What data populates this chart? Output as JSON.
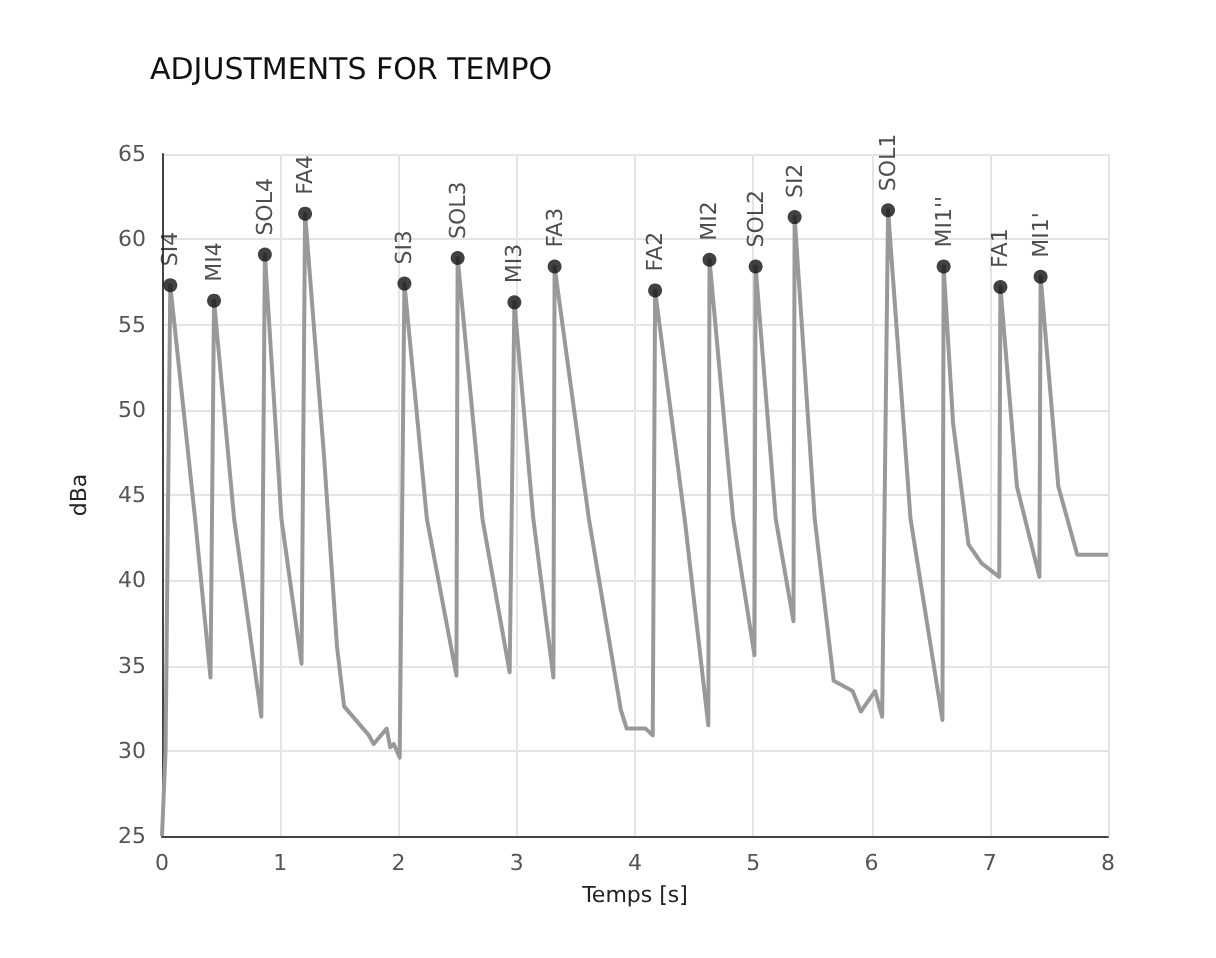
{
  "chart_data": {
    "type": "line",
    "title": "ADJUSTMENTS FOR TEMPO",
    "xlabel": "Temps [s]",
    "ylabel": "dBa",
    "xlim": [
      0,
      8
    ],
    "xticks": [
      0,
      1,
      2,
      3,
      4,
      5,
      6,
      7,
      8
    ],
    "ylim": [
      25,
      65
    ],
    "yticks": [
      25,
      30,
      35,
      40,
      45,
      50,
      55,
      60,
      65
    ],
    "grid": true,
    "series": [
      {
        "color": "#999999",
        "marker": "none",
        "x": [
          0,
          0.03,
          0.07,
          0.28,
          0.41,
          0.44,
          0.61,
          0.84,
          0.87,
          1.01,
          1.18,
          1.21,
          1.37,
          1.48,
          1.54,
          1.75,
          1.79,
          1.9,
          1.93,
          1.96,
          2.01,
          2.05,
          2.24,
          2.49,
          2.5,
          2.71,
          2.94,
          2.98,
          3.14,
          3.31,
          3.32,
          3.61,
          3.88,
          3.93,
          4.09,
          4.15,
          4.17,
          4.42,
          4.62,
          4.63,
          4.83,
          5.01,
          5.02,
          5.19,
          5.34,
          5.35,
          5.52,
          5.68,
          5.84,
          5.91,
          6.03,
          6.09,
          6.14,
          6.33,
          6.6,
          6.61,
          6.69,
          6.82,
          6.93,
          7.08,
          7.09,
          7.23,
          7.42,
          7.43,
          7.58,
          7.74,
          8.0
        ],
        "values": [
          25,
          30,
          57.3,
          43.6,
          34.3,
          56.4,
          43.6,
          32.0,
          59.1,
          43.6,
          35.1,
          61.5,
          47.3,
          36.1,
          32.6,
          30.9,
          30.4,
          31.3,
          30.2,
          30.4,
          29.6,
          57.4,
          43.6,
          34.4,
          58.9,
          43.6,
          34.6,
          56.3,
          43.6,
          34.3,
          58.4,
          43.6,
          32.4,
          31.3,
          31.3,
          30.9,
          57.0,
          43.6,
          31.5,
          58.8,
          43.6,
          35.6,
          58.4,
          43.6,
          37.6,
          61.3,
          43.6,
          34.1,
          33.5,
          32.3,
          33.5,
          32.0,
          61.7,
          43.6,
          31.8,
          58.4,
          49.2,
          42.1,
          41.0,
          40.2,
          57.2,
          45.5,
          40.2,
          57.8,
          45.5,
          41.5,
          41.5
        ]
      },
      {
        "type": "scatter",
        "color": "#111111",
        "marker": "circle",
        "x": [
          0.07,
          0.44,
          0.87,
          1.21,
          2.05,
          2.5,
          2.98,
          3.32,
          4.17,
          4.63,
          5.02,
          5.35,
          6.14,
          6.61,
          7.09,
          7.43
        ],
        "values": [
          57.3,
          56.4,
          59.1,
          61.5,
          57.4,
          58.9,
          56.3,
          58.4,
          57.0,
          58.8,
          58.4,
          61.3,
          61.7,
          58.4,
          57.2,
          57.8
        ],
        "value_labels": [
          "SI4",
          "MI4",
          "SOL4",
          "FA4",
          "SI3",
          "SOL3",
          "MI3",
          "FA3",
          "FA2",
          "MI2",
          "SOL2",
          "SI2",
          "SOL1",
          "MI1''",
          "FA1",
          "MI1'"
        ]
      }
    ]
  }
}
